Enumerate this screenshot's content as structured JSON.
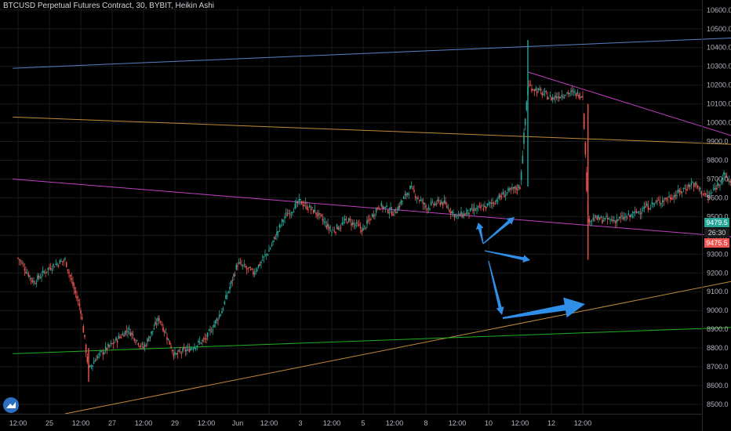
{
  "header": {
    "title": "BTCUSD Perpetual Futures Contract, 30, BYBIT, Heikin Ashi"
  },
  "colors": {
    "background": "#000000",
    "up": "#26a69a",
    "down": "#ef5350",
    "grid": "#1a1a1a",
    "axis_text": "#b2b5be",
    "arrow": "#2f8fe8",
    "resistance_blue": "#5b7fc7",
    "orange": "#c08a3a",
    "magenta": "#c040c0",
    "green": "#22b022"
  },
  "price_tags": {
    "current": "9479.5",
    "countdown": "26:30",
    "ask": "9475.5"
  },
  "chart_data": {
    "type": "candlestick",
    "title": "BTCUSD Perpetual Futures Contract, 30, BYBIT, Heikin Ashi",
    "style": "Heikin Ashi",
    "ylim": [
      8450,
      10620
    ],
    "y_ticks": [
      8500,
      8600,
      8700,
      8800,
      8900,
      9000,
      9100,
      9200,
      9300,
      9400,
      9500,
      9600,
      9700,
      9800,
      9900,
      10000,
      10100,
      10200,
      10300,
      10400,
      10500,
      10600
    ],
    "y_tick_labels": [
      "8500.0",
      "8600.0",
      "8700.0",
      "8800.0",
      "8900.0",
      "9000.0",
      "9100.0",
      "9200.0",
      "9300.0",
      "9400.0",
      "9500.0",
      "9600.0",
      "9700.0",
      "9800.0",
      "9900.0",
      "10000.0",
      "10100.0",
      "10200.0",
      "10300.0",
      "10400.0",
      "10500.0",
      "10600.0"
    ],
    "x_ticks": [
      "12:00",
      "25",
      "12:00",
      "27",
      "12:00",
      "29",
      "12:00",
      "Jun",
      "12:00",
      "3",
      "12:00",
      "5",
      "12:00",
      "8",
      "12:00",
      "10",
      "12:00",
      "12",
      "12:00"
    ],
    "last_price": 9479.5,
    "keypoints": [
      {
        "x": "May 24 00:00",
        "y": 9280
      },
      {
        "x": "May 24 06:00",
        "y": 9150
      },
      {
        "x": "May 24 12:00",
        "y": 9230
      },
      {
        "x": "May 24 18:00",
        "y": 9270
      },
      {
        "x": "May 25 00:00",
        "y": 9000
      },
      {
        "x": "May 25 03:00",
        "y": 8680
      },
      {
        "x": "May 25 06:00",
        "y": 8750
      },
      {
        "x": "May 25 12:00",
        "y": 8820
      },
      {
        "x": "May 25 18:00",
        "y": 8900
      },
      {
        "x": "May 26 00:00",
        "y": 8800
      },
      {
        "x": "May 26 06:00",
        "y": 8960
      },
      {
        "x": "May 26 12:00",
        "y": 8760
      },
      {
        "x": "May 26 18:00",
        "y": 8800
      },
      {
        "x": "May 27 00:00",
        "y": 8850
      },
      {
        "x": "May 27 06:00",
        "y": 9000
      },
      {
        "x": "May 27 12:00",
        "y": 9250
      },
      {
        "x": "May 27 18:00",
        "y": 9200
      },
      {
        "x": "May 28 00:00",
        "y": 9320
      },
      {
        "x": "May 28 06:00",
        "y": 9500
      },
      {
        "x": "May 28 12:00",
        "y": 9580
      },
      {
        "x": "May 28 18:00",
        "y": 9520
      },
      {
        "x": "May 29 00:00",
        "y": 9420
      },
      {
        "x": "May 29 06:00",
        "y": 9480
      },
      {
        "x": "May 29 12:00",
        "y": 9430
      },
      {
        "x": "May 29 18:00",
        "y": 9560
      },
      {
        "x": "May 30 00:00",
        "y": 9520
      },
      {
        "x": "May 30 06:00",
        "y": 9650
      },
      {
        "x": "May 30 12:00",
        "y": 9550
      },
      {
        "x": "May 30 18:00",
        "y": 9580
      },
      {
        "x": "May 31 00:00",
        "y": 9500
      },
      {
        "x": "May 31 06:00",
        "y": 9530
      },
      {
        "x": "May 31 12:00",
        "y": 9560
      },
      {
        "x": "May 31 18:00",
        "y": 9620
      },
      {
        "x": "Jun 1 00:00",
        "y": 9660
      },
      {
        "x": "Jun 1 03:00",
        "y": 10200
      },
      {
        "x": "Jun 1 12:00",
        "y": 10130
      },
      {
        "x": "Jun 1 18:00",
        "y": 10160
      },
      {
        "x": "Jun 2 00:00",
        "y": 10150
      },
      {
        "x": "Jun 2 02:00",
        "y": 9490
      },
      {
        "x": "Jun 2 12:00",
        "y": 9480
      },
      {
        "x": "Jun 2 18:00",
        "y": 9500
      },
      {
        "x": "Jun 3 00:00",
        "y": 9550
      },
      {
        "x": "Jun 3 12:00",
        "y": 9620
      },
      {
        "x": "Jun 3 18:00",
        "y": 9680
      },
      {
        "x": "Jun 4 00:00",
        "y": 9600
      },
      {
        "x": "Jun 4 06:00",
        "y": 9720
      },
      {
        "x": "Jun 4 12:00",
        "y": 9630
      },
      {
        "x": "Jun 4 18:00",
        "y": 9840
      },
      {
        "x": "Jun 5 00:00",
        "y": 9820
      },
      {
        "x": "Jun 5 06:00",
        "y": 9830
      },
      {
        "x": "Jun 5 12:00",
        "y": 9680
      },
      {
        "x": "Jun 5 18:00",
        "y": 9700
      },
      {
        "x": "Jun 6 00:00",
        "y": 9620
      },
      {
        "x": "Jun 6 06:00",
        "y": 9640
      },
      {
        "x": "Jun 6 12:00",
        "y": 9700
      },
      {
        "x": "Jun 6 18:00",
        "y": 9680
      },
      {
        "x": "Jun 7 00:00",
        "y": 9700
      },
      {
        "x": "Jun 7 06:00",
        "y": 9640
      },
      {
        "x": "Jun 7 12:00",
        "y": 9470
      }
    ],
    "trendlines": [
      {
        "name": "",
        "color": "#5b7fc7",
        "from": {
          "x": "May 23 22:00",
          "y": 10290
        },
        "to": {
          "x": "Jun 14 06:00",
          "y": 10590
        }
      },
      {
        "name": "",
        "color": "#c08a3a",
        "from": {
          "x": "May 23 22:00",
          "y": 10030
        },
        "to": {
          "x": "Jun 14 06:00",
          "y": 9760
        }
      },
      {
        "name": "",
        "color": "#c08a3a",
        "from": {
          "x": "May 24 18:00",
          "y": 8450
        },
        "to": {
          "x": "Jun 14 06:00",
          "y": 9810
        }
      },
      {
        "name": "",
        "color": "#c040c0",
        "from": {
          "x": "May 23 22:00",
          "y": 9700
        },
        "to": {
          "x": "Jun 13 18:00",
          "y": 9140
        }
      },
      {
        "name": "",
        "color": "#c040c0",
        "from": {
          "x": "Jun 1 03:00",
          "y": 10270
        },
        "to": {
          "x": "Jun 14 06:00",
          "y": 8900
        }
      },
      {
        "name": "",
        "color": "#22b022",
        "from": {
          "x": "May 23 22:00",
          "y": 8770
        },
        "to": {
          "x": "Jun 14 06:00",
          "y": 9030
        }
      }
    ]
  }
}
